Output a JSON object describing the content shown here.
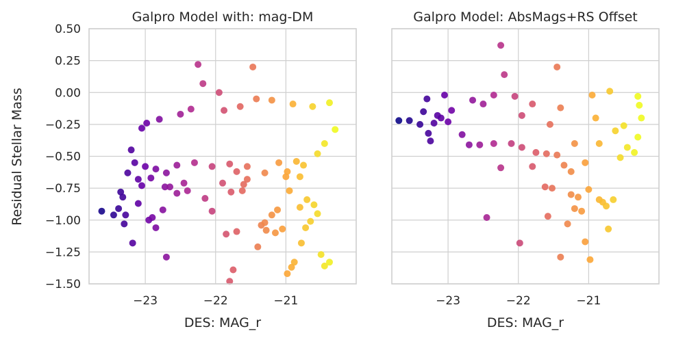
{
  "chart_data": [
    {
      "type": "scatter",
      "title": "Galpro Model with: mag-DM",
      "xlabel": "DES: MAG_r",
      "ylabel": "Residual Stellar Mass",
      "xlim": [
        -23.8,
        -20.0
      ],
      "ylim": [
        -1.5,
        0.5
      ],
      "xticks": [
        -23,
        -22,
        -21
      ],
      "xtick_labels": [
        "−23",
        "−22",
        "−21"
      ],
      "yticks": [
        0.5,
        0.25,
        0.0,
        -0.25,
        -0.5,
        -0.75,
        -1.0,
        -1.25,
        -1.5
      ],
      "ytick_labels": [
        "0.50",
        "0.25",
        "0.00",
        "−0.25",
        "−0.50",
        "−0.75",
        "−1.00",
        "−1.25",
        "−1.50"
      ],
      "grid": true,
      "colormap": [
        "#0d0887",
        "#6a00a8",
        "#b12a90",
        "#e16462",
        "#fca636",
        "#f0f921"
      ],
      "colorscale_range": [
        -23.7,
        -20.3
      ],
      "points": [
        [
          -23.62,
          -0.93
        ],
        [
          -23.45,
          -0.96
        ],
        [
          -23.38,
          -0.91
        ],
        [
          -23.35,
          -0.78
        ],
        [
          -23.3,
          -1.03
        ],
        [
          -23.28,
          -0.96
        ],
        [
          -23.32,
          -0.82
        ],
        [
          -23.18,
          -1.18
        ],
        [
          -23.1,
          -0.87
        ],
        [
          -23.05,
          -0.73
        ],
        [
          -22.95,
          -1.0
        ],
        [
          -22.9,
          -0.98
        ],
        [
          -22.85,
          -1.06
        ],
        [
          -22.75,
          -0.92
        ],
        [
          -22.72,
          -0.74
        ],
        [
          -22.7,
          -1.29
        ],
        [
          -22.55,
          -0.79
        ],
        [
          -22.4,
          -0.77
        ],
        [
          -22.25,
          0.22
        ],
        [
          -22.18,
          0.07
        ],
        [
          -22.15,
          -0.83
        ],
        [
          -22.05,
          -0.93
        ],
        [
          -21.95,
          0.0
        ],
        [
          -21.9,
          -0.71
        ],
        [
          -21.85,
          -1.11
        ],
        [
          -21.78,
          -0.78
        ],
        [
          -21.7,
          -1.09
        ],
        [
          -21.62,
          -0.77
        ],
        [
          -21.55,
          -0.68
        ],
        [
          -21.47,
          0.2
        ],
        [
          -21.4,
          -1.21
        ],
        [
          -21.35,
          -1.04
        ],
        [
          -21.28,
          -1.08
        ],
        [
          -21.2,
          -0.96
        ],
        [
          -21.15,
          -1.1
        ],
        [
          -21.05,
          -1.07
        ],
        [
          -20.98,
          -1.42
        ],
        [
          -20.92,
          -1.37
        ],
        [
          -20.88,
          -1.33
        ],
        [
          -20.78,
          -1.18
        ],
        [
          -20.72,
          -1.06
        ],
        [
          -20.65,
          -1.01
        ],
        [
          -20.55,
          -0.95
        ],
        [
          -20.5,
          -1.27
        ],
        [
          -20.45,
          -1.36
        ],
        [
          -20.38,
          -1.33
        ],
        [
          -21.75,
          -1.39
        ],
        [
          -21.8,
          -1.48
        ],
        [
          -21.3,
          -1.02
        ],
        [
          -21.12,
          -0.92
        ],
        [
          -20.8,
          -0.9
        ],
        [
          -20.6,
          -0.88
        ],
        [
          -20.7,
          -0.84
        ],
        [
          -20.95,
          -0.77
        ],
        [
          -21.0,
          -0.66
        ],
        [
          -22.98,
          -0.24
        ],
        [
          -23.05,
          -0.28
        ],
        [
          -22.8,
          -0.21
        ],
        [
          -22.5,
          -0.17
        ],
        [
          -22.35,
          -0.13
        ],
        [
          -21.88,
          -0.14
        ],
        [
          -21.65,
          -0.11
        ],
        [
          -21.42,
          -0.05
        ],
        [
          -21.2,
          -0.06
        ],
        [
          -20.9,
          -0.09
        ],
        [
          -20.62,
          -0.11
        ],
        [
          -20.38,
          -0.08
        ],
        [
          -20.3,
          -0.29
        ],
        [
          -20.45,
          -0.4
        ],
        [
          -20.55,
          -0.48
        ],
        [
          -20.75,
          -0.57
        ],
        [
          -20.85,
          -0.54
        ],
        [
          -21.1,
          -0.55
        ],
        [
          -21.3,
          -0.63
        ],
        [
          -21.55,
          -0.58
        ],
        [
          -21.8,
          -0.56
        ],
        [
          -22.05,
          -0.58
        ],
        [
          -22.3,
          -0.55
        ],
        [
          -22.55,
          -0.57
        ],
        [
          -22.7,
          -0.63
        ],
        [
          -22.85,
          -0.6
        ],
        [
          -23.0,
          -0.58
        ],
        [
          -23.15,
          -0.55
        ],
        [
          -23.2,
          -0.45
        ],
        [
          -23.25,
          -0.63
        ],
        [
          -23.1,
          -0.68
        ],
        [
          -22.92,
          -0.67
        ],
        [
          -22.65,
          -0.74
        ],
        [
          -22.45,
          -0.71
        ],
        [
          -21.7,
          -0.62
        ],
        [
          -21.6,
          -0.72
        ],
        [
          -20.98,
          -0.62
        ],
        [
          -20.8,
          -0.66
        ]
      ]
    },
    {
      "type": "scatter",
      "title": "Galpro Model: AbsMags+RS Offset",
      "xlabel": "DES: MAG_r",
      "ylabel": "",
      "xlim": [
        -23.8,
        -20.0
      ],
      "ylim": [
        -1.5,
        0.5
      ],
      "xticks": [
        -23,
        -22,
        -21
      ],
      "xtick_labels": [
        "−23",
        "−22",
        "−21"
      ],
      "yticks": [
        0.5,
        0.25,
        0.0,
        -0.25,
        -0.5,
        -0.75,
        -1.0,
        -1.25,
        -1.5
      ],
      "grid": true,
      "colormap": [
        "#0d0887",
        "#6a00a8",
        "#b12a90",
        "#e16462",
        "#fca636",
        "#f0f921"
      ],
      "colorscale_range": [
        -23.7,
        -20.3
      ],
      "points": [
        [
          -23.7,
          -0.22
        ],
        [
          -23.55,
          -0.22
        ],
        [
          -23.4,
          -0.25
        ],
        [
          -23.35,
          -0.15
        ],
        [
          -23.28,
          -0.32
        ],
        [
          -23.25,
          -0.38
        ],
        [
          -23.2,
          -0.24
        ],
        [
          -23.1,
          -0.2
        ],
        [
          -23.0,
          -0.23
        ],
        [
          -22.95,
          -0.14
        ],
        [
          -22.45,
          -0.98
        ],
        [
          -22.25,
          0.37
        ],
        [
          -22.25,
          -0.59
        ],
        [
          -22.2,
          0.14
        ],
        [
          -22.05,
          -0.03
        ],
        [
          -21.98,
          -1.18
        ],
        [
          -21.8,
          -0.58
        ],
        [
          -21.62,
          -0.74
        ],
        [
          -21.58,
          -0.97
        ],
        [
          -21.52,
          -0.75
        ],
        [
          -21.45,
          0.2
        ],
        [
          -21.4,
          -1.29
        ],
        [
          -21.35,
          -0.57
        ],
        [
          -21.3,
          -1.03
        ],
        [
          -21.25,
          -0.8
        ],
        [
          -21.2,
          -0.91
        ],
        [
          -21.15,
          -0.82
        ],
        [
          -21.1,
          -0.93
        ],
        [
          -21.05,
          -1.17
        ],
        [
          -21.0,
          -0.76
        ],
        [
          -20.98,
          -1.31
        ],
        [
          -20.95,
          -0.02
        ],
        [
          -20.85,
          -0.84
        ],
        [
          -20.8,
          -0.86
        ],
        [
          -20.75,
          -0.89
        ],
        [
          -20.65,
          -0.84
        ],
        [
          -20.72,
          -1.07
        ],
        [
          -20.55,
          -0.51
        ],
        [
          -20.35,
          -0.47
        ],
        [
          -20.3,
          -0.35
        ],
        [
          -20.25,
          -0.2
        ],
        [
          -20.28,
          -0.1
        ],
        [
          -20.3,
          -0.03
        ],
        [
          -20.62,
          -0.3
        ],
        [
          -20.7,
          0.01
        ],
        [
          -21.05,
          -0.55
        ],
        [
          -21.25,
          -0.62
        ],
        [
          -21.45,
          -0.49
        ],
        [
          -21.6,
          -0.48
        ],
        [
          -21.75,
          -0.47
        ],
        [
          -21.95,
          -0.43
        ],
        [
          -22.1,
          -0.4
        ],
        [
          -22.35,
          -0.4
        ],
        [
          -22.55,
          -0.41
        ],
        [
          -22.7,
          -0.41
        ],
        [
          -23.15,
          -0.18
        ],
        [
          -22.8,
          -0.33
        ],
        [
          -23.3,
          -0.05
        ],
        [
          -23.05,
          -0.02
        ],
        [
          -22.65,
          -0.06
        ],
        [
          -22.5,
          -0.09
        ],
        [
          -21.8,
          -0.09
        ],
        [
          -21.55,
          -0.25
        ],
        [
          -21.4,
          -0.12
        ],
        [
          -20.9,
          -0.2
        ],
        [
          -20.5,
          -0.26
        ],
        [
          -20.45,
          -0.43
        ],
        [
          -22.35,
          -0.02
        ],
        [
          -21.95,
          -0.18
        ],
        [
          -21.2,
          -0.4
        ],
        [
          -20.85,
          -0.4
        ]
      ]
    }
  ]
}
